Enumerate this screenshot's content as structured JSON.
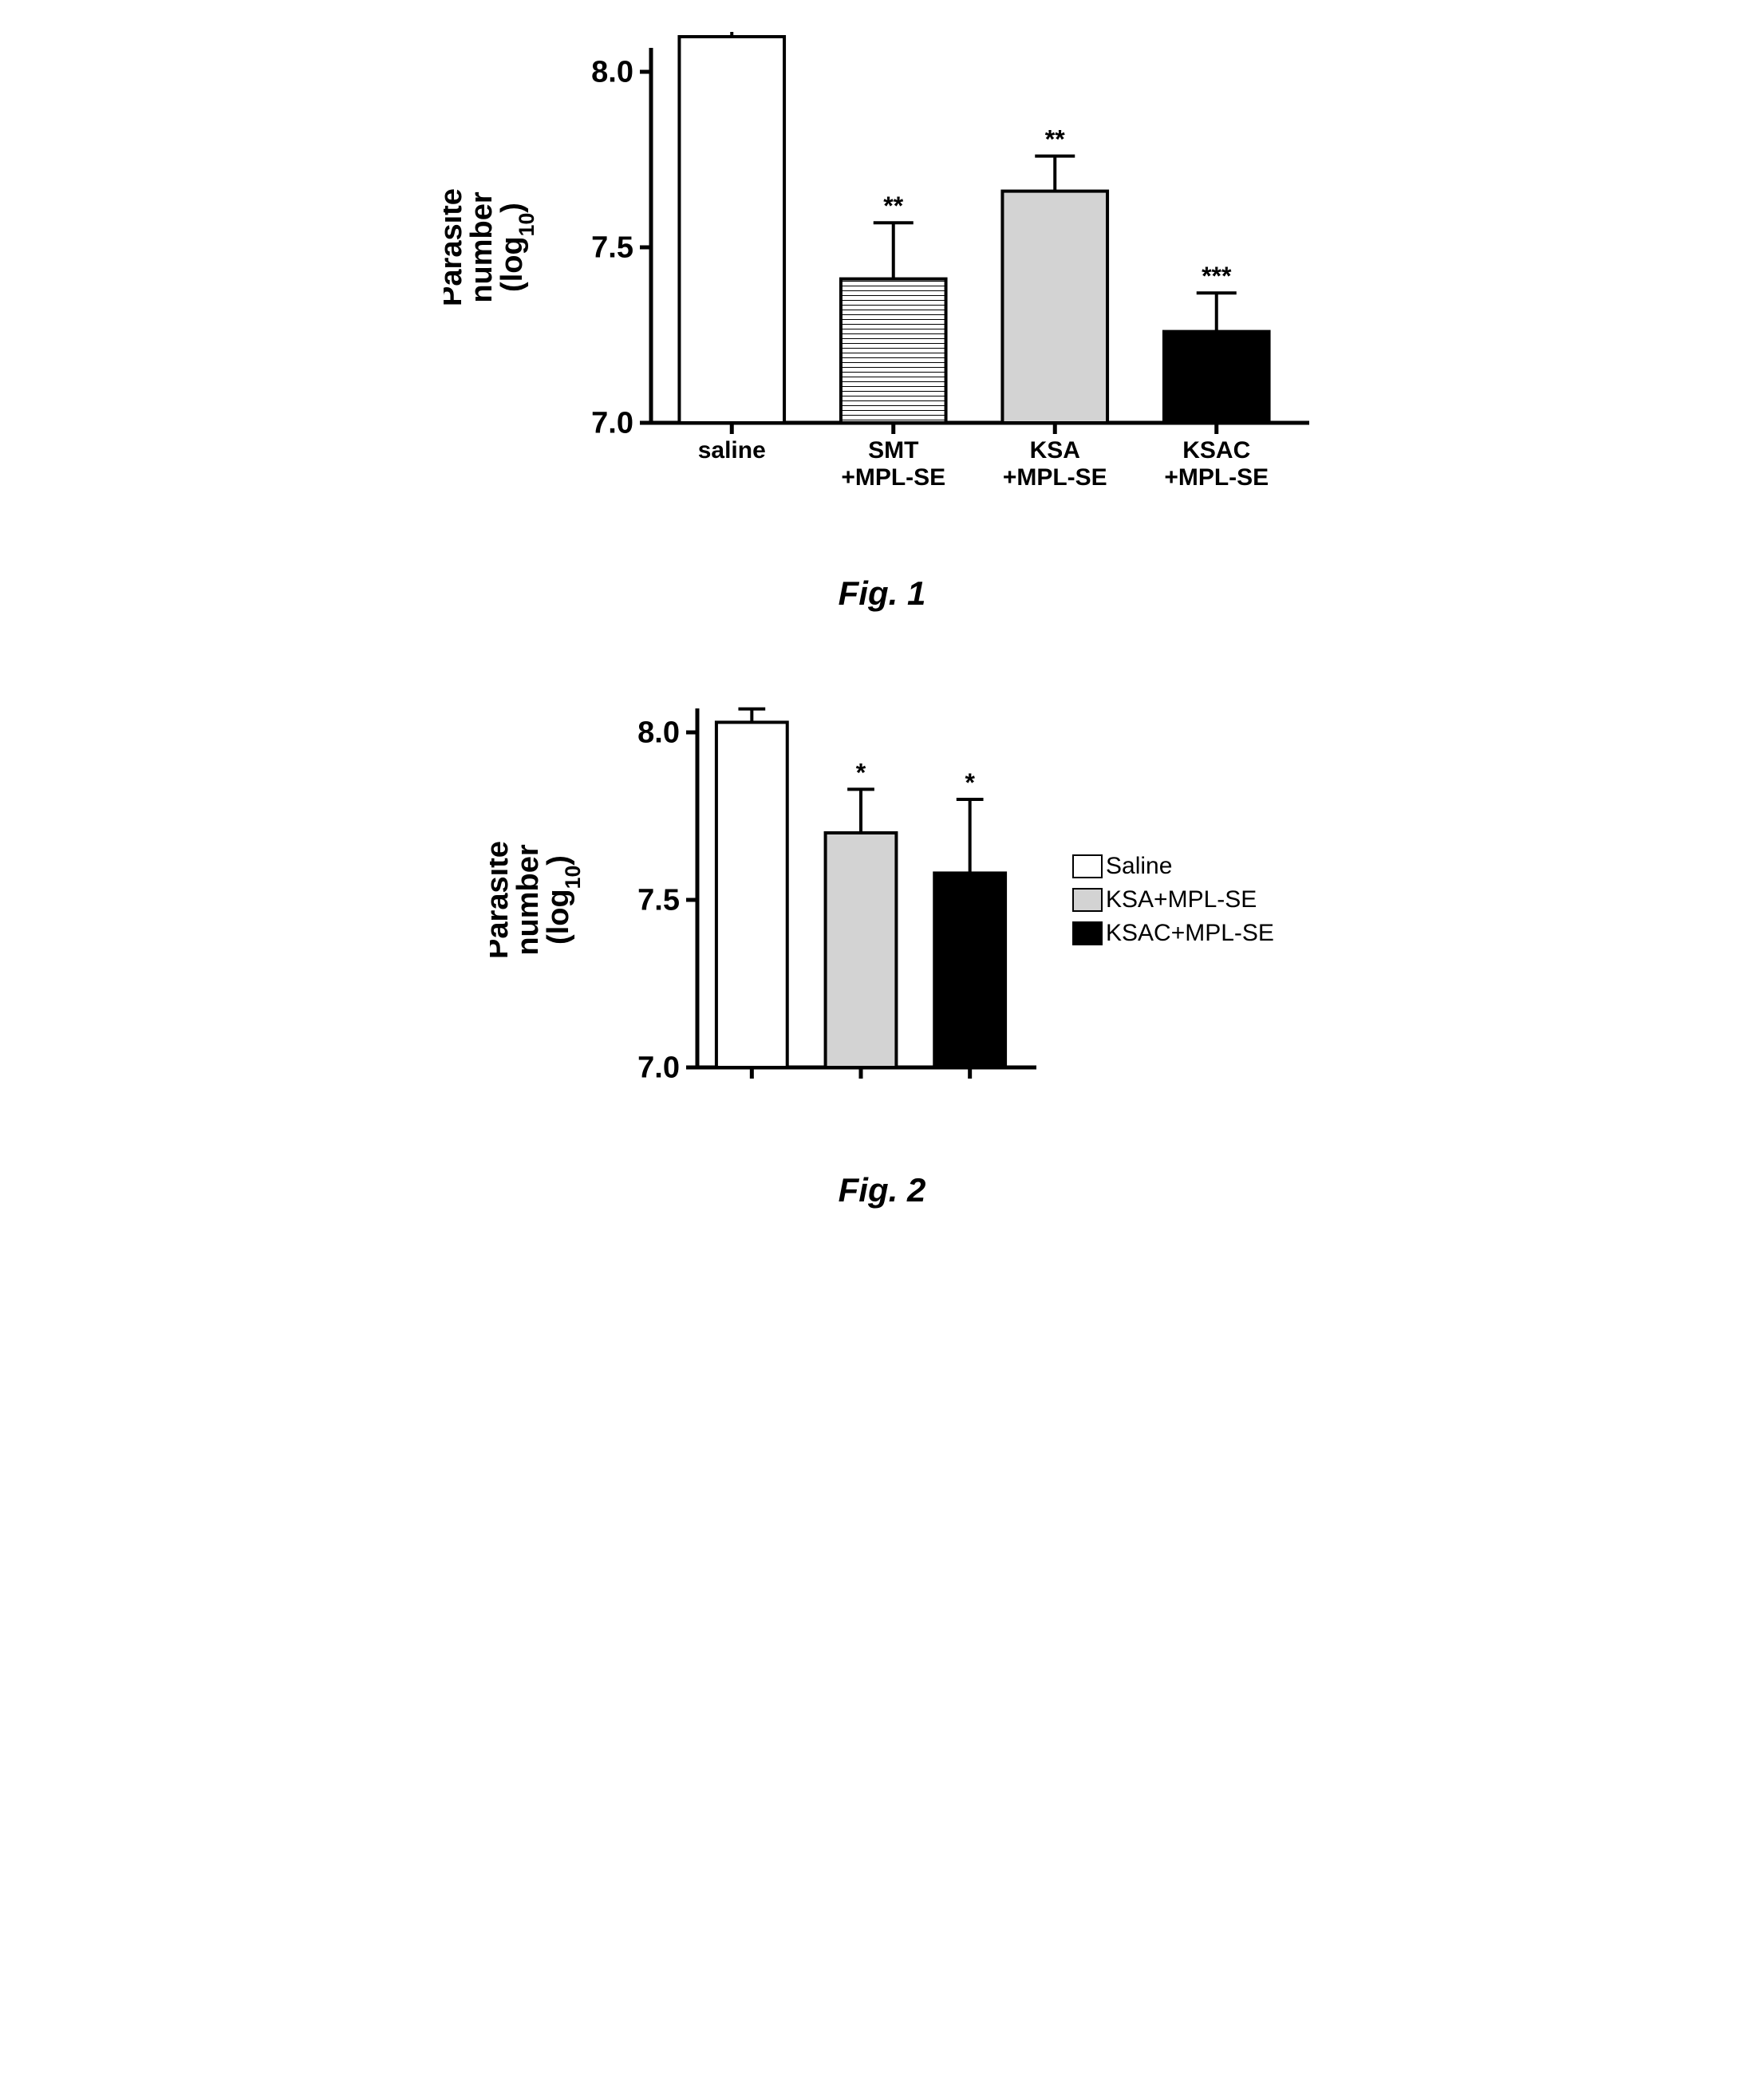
{
  "fig1": {
    "type": "bar",
    "ylabel_line1": "Parasite",
    "ylabel_line2": "number",
    "ylabel_line3": "(log",
    "ylabel_line3_sub": "10",
    "ylabel_line3_end": ")",
    "ylabel_fontsize": 38,
    "ylim": [
      7.0,
      8.0
    ],
    "yticks": [
      "7.0",
      "7.5",
      "8.0"
    ],
    "tick_fontsize": 38,
    "background_color": "#ffffff",
    "axis_width": 5,
    "bars": [
      {
        "label_line1": "saline",
        "label_line2": "",
        "value": 8.1,
        "error": 0.08,
        "fill": "#ffffff",
        "pattern": "none",
        "sig": ""
      },
      {
        "label_line1": "SMT",
        "label_line2": "+MPL-SE",
        "value": 7.41,
        "error": 0.16,
        "fill": "#ffffff",
        "pattern": "hatch",
        "sig": "**"
      },
      {
        "label_line1": "KSA",
        "label_line2": "+MPL-SE",
        "value": 7.66,
        "error": 0.1,
        "fill": "#d3d3d3",
        "pattern": "none",
        "sig": "**"
      },
      {
        "label_line1": "KSAC",
        "label_line2": "+MPL-SE",
        "value": 7.26,
        "error": 0.11,
        "fill": "#000000",
        "pattern": "none",
        "sig": "***"
      }
    ],
    "xlabel_fontsize": 30,
    "sig_fontsize": 32,
    "bar_width": 0.65,
    "figure_label": "Fig. 1"
  },
  "fig2": {
    "type": "bar",
    "ylabel_line1": "Parasite",
    "ylabel_line2": "number",
    "ylabel_line3": "(log",
    "ylabel_line3_sub": "10",
    "ylabel_line3_end": ")",
    "ylabel_fontsize": 38,
    "ylim": [
      7.0,
      8.0
    ],
    "yticks": [
      "7.0",
      "7.5",
      "8.0"
    ],
    "tick_fontsize": 38,
    "background_color": "#ffffff",
    "axis_width": 5,
    "bars": [
      {
        "value": 8.03,
        "error": 0.04,
        "fill": "#ffffff",
        "pattern": "none",
        "sig": ""
      },
      {
        "value": 7.7,
        "error": 0.13,
        "fill": "#d3d3d3",
        "pattern": "none",
        "sig": "*"
      },
      {
        "value": 7.58,
        "error": 0.22,
        "fill": "#000000",
        "pattern": "none",
        "sig": "*"
      }
    ],
    "sig_fontsize": 32,
    "bar_width": 0.65,
    "figure_label": "Fig. 2",
    "legend": [
      {
        "label": "Saline",
        "fill": "#ffffff"
      },
      {
        "label": "KSA+MPL-SE",
        "fill": "#d3d3d3"
      },
      {
        "label": "KSAC+MPL-SE",
        "fill": "#000000"
      }
    ]
  }
}
